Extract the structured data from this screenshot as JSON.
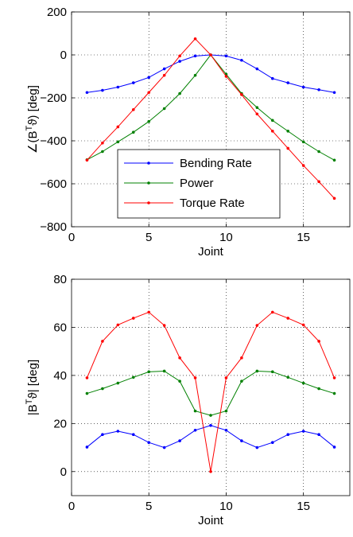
{
  "chart_data": [
    {
      "type": "line",
      "title": "",
      "xlabel": "Joint",
      "ylabel_parts": [
        "∠(B",
        "T",
        "ϑ) [deg]"
      ],
      "xlim": [
        0,
        18
      ],
      "ylim": [
        -800,
        200
      ],
      "xticks": [
        0,
        5,
        10,
        15
      ],
      "yticks": [
        -800,
        -600,
        -400,
        -200,
        0,
        200
      ],
      "grid": true,
      "legend_position": "lower-center",
      "x": [
        1,
        2,
        3,
        4,
        5,
        6,
        7,
        8,
        9,
        10,
        11,
        12,
        13,
        14,
        15,
        16,
        17
      ],
      "series": [
        {
          "name": "Bending Rate",
          "color": "#0000ff",
          "values": [
            -175,
            -165,
            -150,
            -130,
            -105,
            -65,
            -30,
            -5,
            0,
            -5,
            -25,
            -65,
            -110,
            -130,
            -150,
            -162,
            -175
          ]
        },
        {
          "name": "Power",
          "color": "#008000",
          "values": [
            -488,
            -450,
            -405,
            -360,
            -310,
            -250,
            -180,
            -95,
            0,
            -90,
            -180,
            -245,
            -305,
            -355,
            -405,
            -450,
            -490
          ]
        },
        {
          "name": "Torque Rate",
          "color": "#ff0000",
          "values": [
            -490,
            -410,
            -335,
            -255,
            -175,
            -95,
            -5,
            75,
            0,
            -100,
            -185,
            -275,
            -355,
            -435,
            -515,
            -590,
            -668
          ]
        }
      ]
    },
    {
      "type": "line",
      "title": "",
      "xlabel": "Joint",
      "ylabel_parts": [
        "|B",
        "T",
        "ϑ| [deg]"
      ],
      "xlim": [
        0,
        18
      ],
      "ylim": [
        -10,
        80
      ],
      "xticks": [
        0,
        5,
        10,
        15
      ],
      "yticks": [
        0,
        20,
        40,
        60,
        80
      ],
      "grid": true,
      "x": [
        1,
        2,
        3,
        4,
        5,
        6,
        7,
        8,
        9,
        10,
        11,
        12,
        13,
        14,
        15,
        16,
        17
      ],
      "series": [
        {
          "name": "Bending Rate",
          "color": "#0000ff",
          "values": [
            10.2,
            15.4,
            16.8,
            15.4,
            12.1,
            10.0,
            12.8,
            17.2,
            19.2,
            17.2,
            12.8,
            10.0,
            12.1,
            15.4,
            16.8,
            15.4,
            10.2
          ]
        },
        {
          "name": "Power",
          "color": "#008000",
          "values": [
            32.5,
            34.5,
            36.8,
            39.2,
            41.5,
            41.8,
            37.6,
            25.2,
            23.4,
            25.2,
            37.6,
            41.8,
            41.5,
            39.2,
            36.8,
            34.5,
            32.5
          ]
        },
        {
          "name": "Torque Rate",
          "color": "#ff0000",
          "values": [
            39.0,
            54.2,
            61.0,
            63.8,
            66.3,
            60.8,
            47.3,
            39.0,
            0.0,
            39.0,
            47.3,
            60.8,
            66.3,
            63.8,
            61.0,
            54.2,
            39.0
          ]
        }
      ]
    }
  ]
}
